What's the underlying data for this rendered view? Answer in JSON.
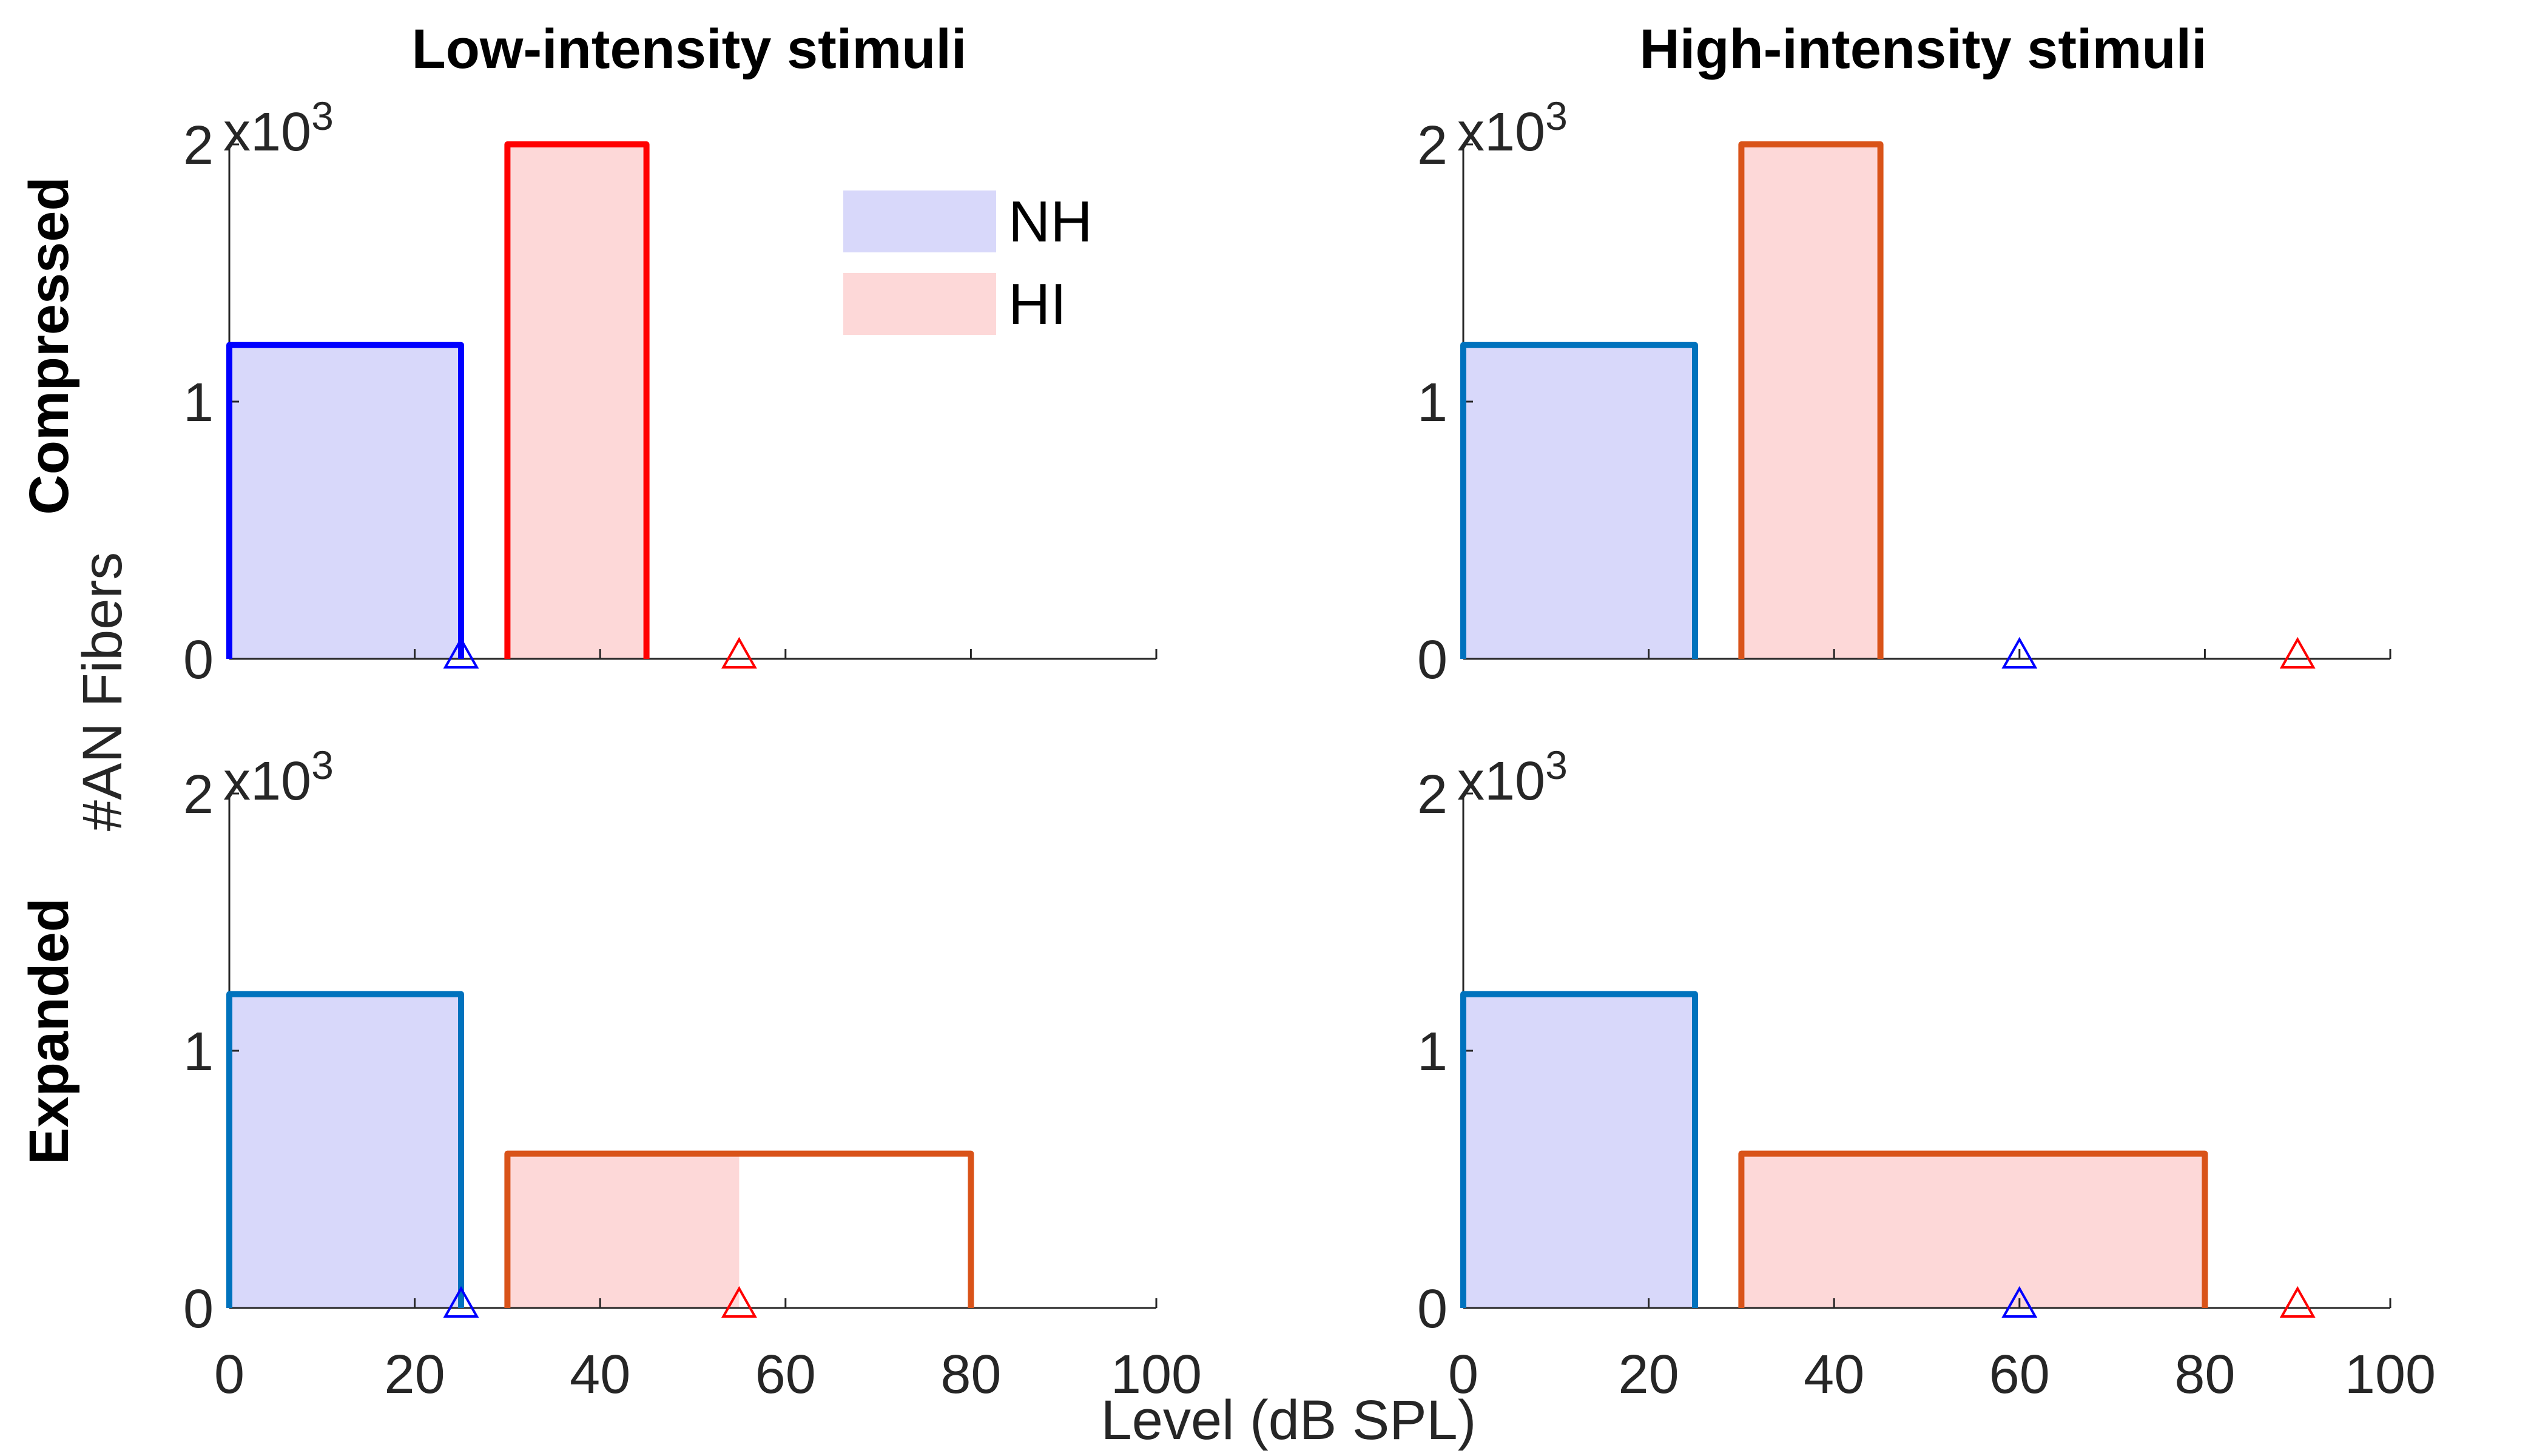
{
  "figure": {
    "ylabel": "#AN Fibers",
    "xlabel": "Level (dB SPL)",
    "columns": [
      "Low-intensity stimuli",
      "High-intensity stimuli"
    ],
    "rows": [
      "Compressed",
      "Expanded"
    ],
    "y_exponent_base": "x10",
    "y_exponent_power": "3",
    "legend": [
      {
        "label": "NH",
        "fill": "#d8d8fa"
      },
      {
        "label": "HI",
        "fill": "#fdd8d8"
      }
    ],
    "colors": {
      "nh_fill": "#d8d8fa",
      "hi_fill": "#fdd8d8",
      "blue": "#0000ff",
      "red": "#ff0000",
      "matlab_blue": "#0072bd",
      "matlab_orange": "#d95319",
      "axis": "#262626"
    }
  },
  "chart_data": [
    {
      "type": "bar",
      "row": "Compressed",
      "column": "Low-intensity stimuli",
      "xlim": [
        0,
        100
      ],
      "ylim": [
        0,
        2
      ],
      "xticks": [
        0,
        20,
        40,
        60,
        80,
        100
      ],
      "yticks": [
        0,
        1,
        2
      ],
      "y_unit": "x10^3",
      "show_xtick_labels": false,
      "show_legend": true,
      "series": [
        {
          "name": "NH",
          "x_start": 0,
          "x_end": 25,
          "value": 1.22,
          "edge": "#0000ff",
          "fill_end": 25
        },
        {
          "name": "HI",
          "x_start": 30,
          "x_end": 45,
          "value": 2.0,
          "edge": "#ff0000",
          "fill_end": 45
        }
      ],
      "markers": [
        {
          "x": 25,
          "color": "#0000ff"
        },
        {
          "x": 55,
          "color": "#ff0000"
        }
      ]
    },
    {
      "type": "bar",
      "row": "Compressed",
      "column": "High-intensity stimuli",
      "xlim": [
        0,
        100
      ],
      "ylim": [
        0,
        2
      ],
      "xticks": [
        0,
        20,
        40,
        60,
        80,
        100
      ],
      "yticks": [
        0,
        1,
        2
      ],
      "y_unit": "x10^3",
      "show_xtick_labels": false,
      "show_legend": false,
      "series": [
        {
          "name": "NH",
          "x_start": 0,
          "x_end": 25,
          "value": 1.22,
          "edge": "#0072bd",
          "fill_end": 25
        },
        {
          "name": "HI",
          "x_start": 30,
          "x_end": 45,
          "value": 2.0,
          "edge": "#d95319",
          "fill_end": 45
        }
      ],
      "markers": [
        {
          "x": 60,
          "color": "#0000ff"
        },
        {
          "x": 90,
          "color": "#ff0000"
        }
      ]
    },
    {
      "type": "bar",
      "row": "Expanded",
      "column": "Low-intensity stimuli",
      "xlim": [
        0,
        100
      ],
      "ylim": [
        0,
        2
      ],
      "xticks": [
        0,
        20,
        40,
        60,
        80,
        100
      ],
      "yticks": [
        0,
        1,
        2
      ],
      "y_unit": "x10^3",
      "show_xtick_labels": true,
      "show_legend": false,
      "series": [
        {
          "name": "NH",
          "x_start": 0,
          "x_end": 25,
          "value": 1.22,
          "edge": "#0072bd",
          "fill_end": 25
        },
        {
          "name": "HI",
          "x_start": 30,
          "x_end": 80,
          "value": 0.6,
          "edge": "#d95319",
          "fill_end": 55
        }
      ],
      "markers": [
        {
          "x": 25,
          "color": "#0000ff"
        },
        {
          "x": 55,
          "color": "#ff0000"
        }
      ]
    },
    {
      "type": "bar",
      "row": "Expanded",
      "column": "High-intensity stimuli",
      "xlim": [
        0,
        100
      ],
      "ylim": [
        0,
        2
      ],
      "xticks": [
        0,
        20,
        40,
        60,
        80,
        100
      ],
      "yticks": [
        0,
        1,
        2
      ],
      "y_unit": "x10^3",
      "show_xtick_labels": true,
      "show_legend": false,
      "series": [
        {
          "name": "NH",
          "x_start": 0,
          "x_end": 25,
          "value": 1.22,
          "edge": "#0072bd",
          "fill_end": 25
        },
        {
          "name": "HI",
          "x_start": 30,
          "x_end": 80,
          "value": 0.6,
          "edge": "#d95319",
          "fill_end": 80
        }
      ],
      "markers": [
        {
          "x": 60,
          "color": "#0000ff"
        },
        {
          "x": 90,
          "color": "#ff0000"
        }
      ]
    }
  ]
}
